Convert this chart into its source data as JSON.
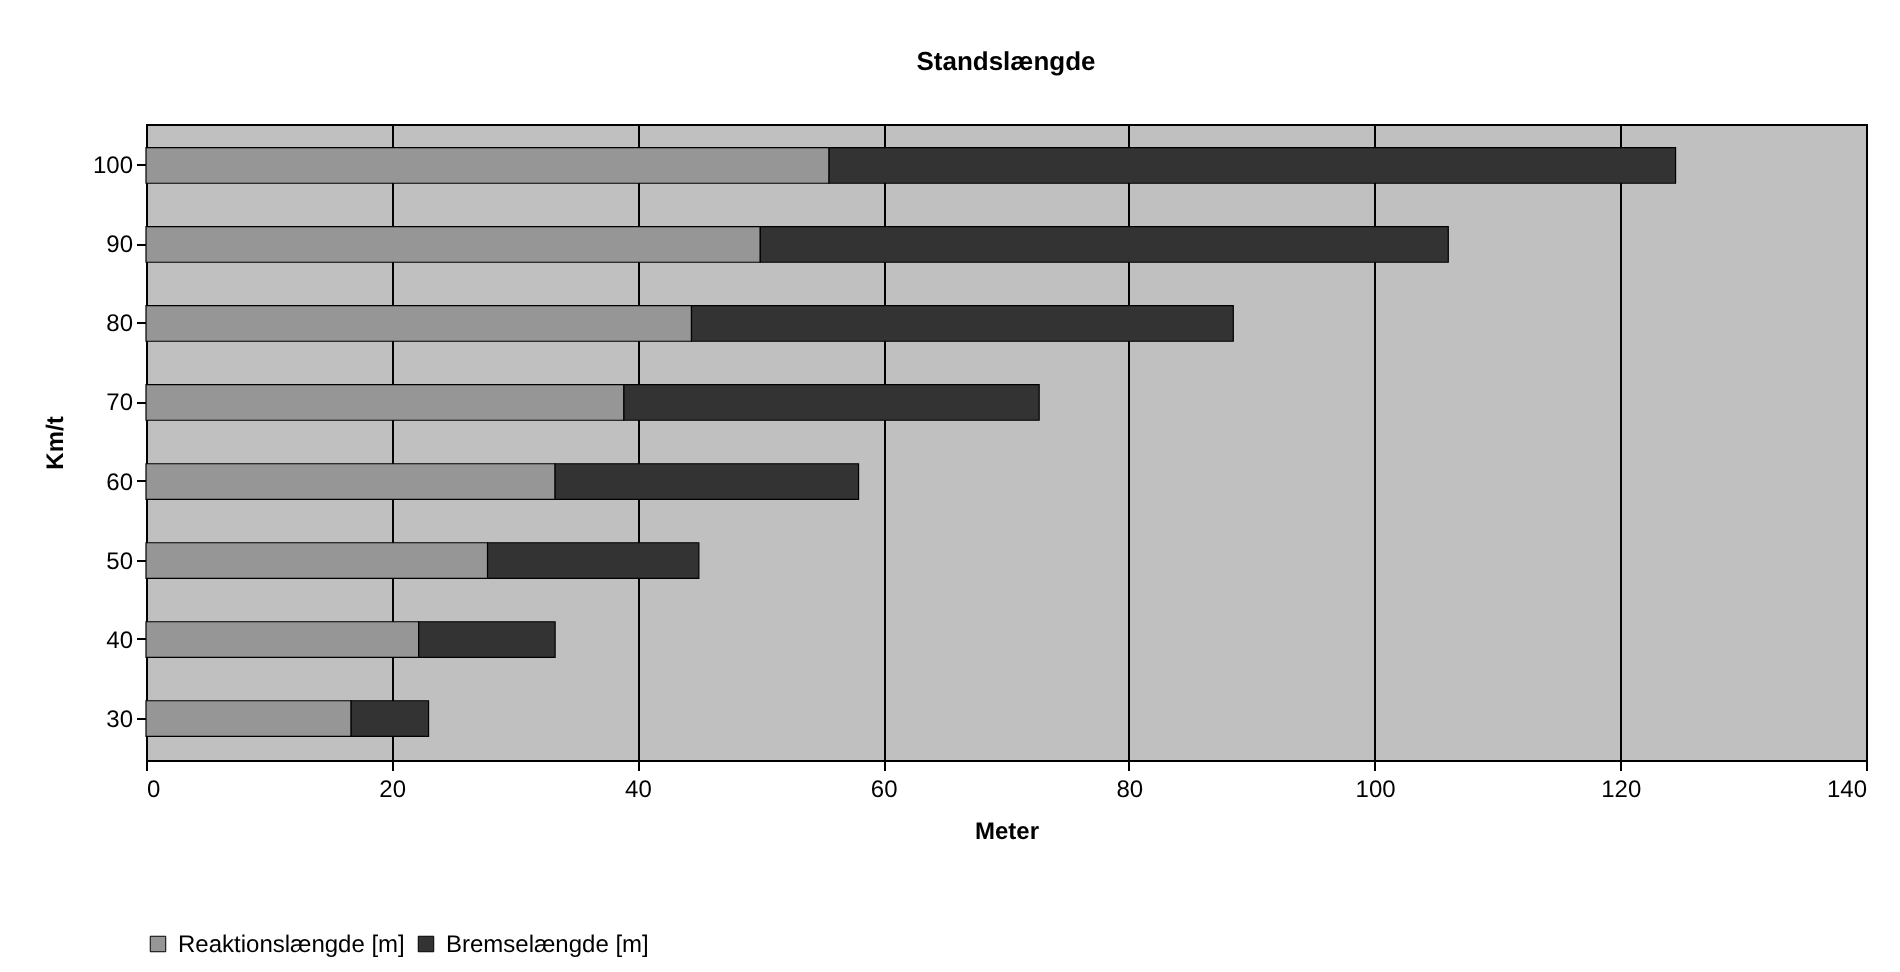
{
  "chart_data": {
    "type": "bar",
    "title": "Standslængde",
    "xlabel": "Meter",
    "ylabel": "Km/t",
    "orientation": "horizontal",
    "stacked": true,
    "categories": [
      "100",
      "90",
      "80",
      "70",
      "60",
      "50",
      "40",
      "30"
    ],
    "series": [
      {
        "name": "Reaktionslængde [m]",
        "color": "#969696",
        "values": [
          55.6,
          50,
          44.4,
          38.9,
          33.3,
          27.8,
          22.2,
          16.7
        ]
      },
      {
        "name": "Bremselængde [m]",
        "color": "#333333",
        "values": [
          68.9,
          56,
          44.1,
          33.8,
          24.7,
          17.2,
          11.1,
          6.3
        ]
      }
    ],
    "xlim": [
      0,
      140
    ],
    "xticks": [
      0,
      20,
      40,
      60,
      80,
      100,
      120,
      140
    ],
    "grid": "x",
    "legend": "bottom"
  }
}
